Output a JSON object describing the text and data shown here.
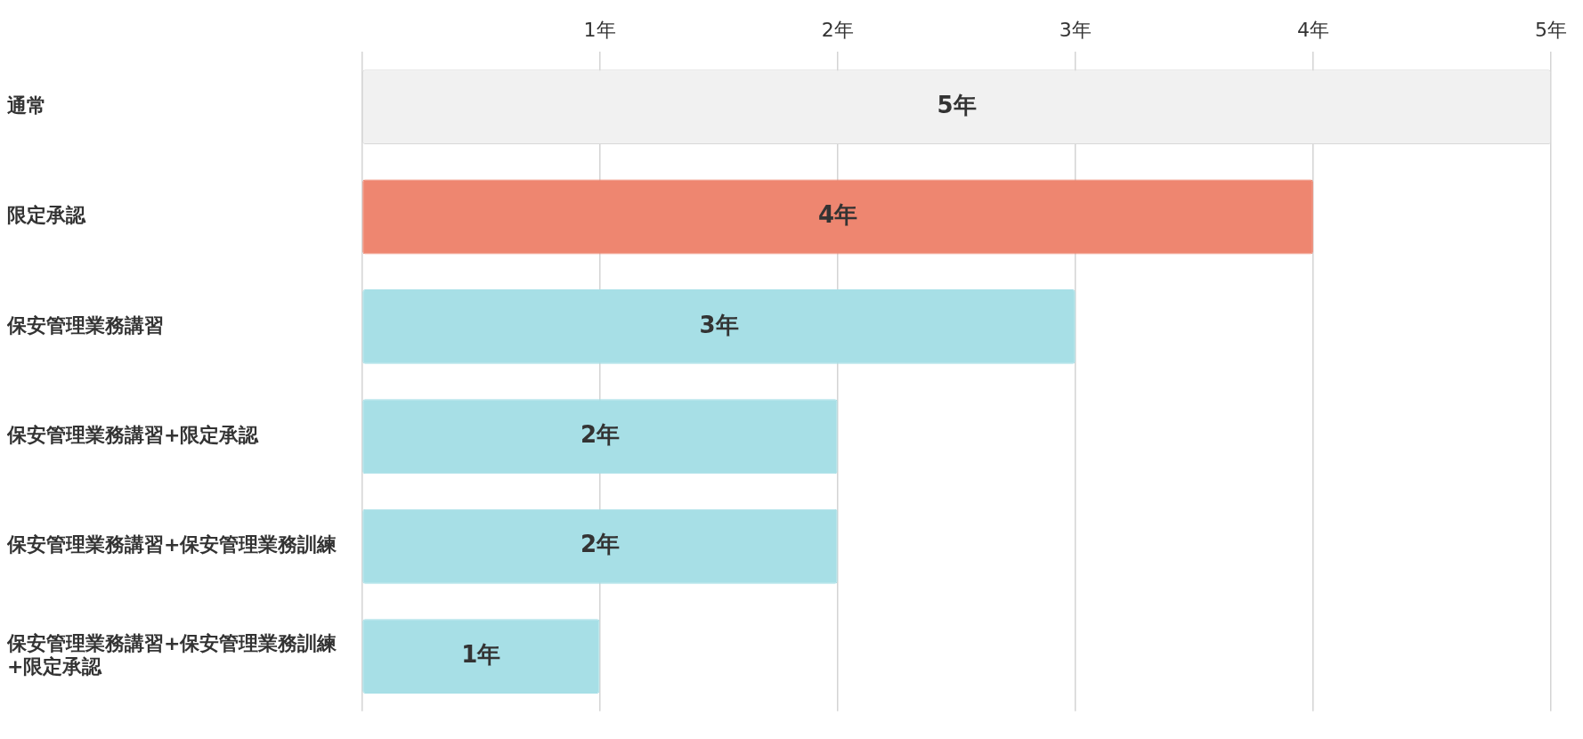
{
  "chart_data": {
    "type": "bar",
    "orientation": "horizontal",
    "categories": [
      "通常",
      "限定承認",
      "保安管理業務講習",
      "保安管理業務講習+限定承認",
      "保安管理業務講習+保安管理業務訓練",
      "保安管理業務講習+保安管理業務訓練\n+限定承認"
    ],
    "values": [
      5,
      4,
      3,
      2,
      2,
      1
    ],
    "colors": [
      "#f1f1f1",
      "#ee8670",
      "#a7dfe6",
      "#a7dfe6",
      "#a7dfe6",
      "#a7dfe6"
    ],
    "value_labels": [
      "5年",
      "4年",
      "3年",
      "2年",
      "2年",
      "1年"
    ],
    "xlim": [
      0,
      5
    ],
    "xticks": [
      {
        "value": 0,
        "label": null
      },
      {
        "value": 1,
        "label": "1年"
      },
      {
        "value": 2,
        "label": "2年"
      },
      {
        "value": 3,
        "label": "3年"
      },
      {
        "value": 4,
        "label": "4年"
      },
      {
        "value": 5,
        "label": "5年"
      }
    ],
    "grid": "x",
    "legend": false
  }
}
